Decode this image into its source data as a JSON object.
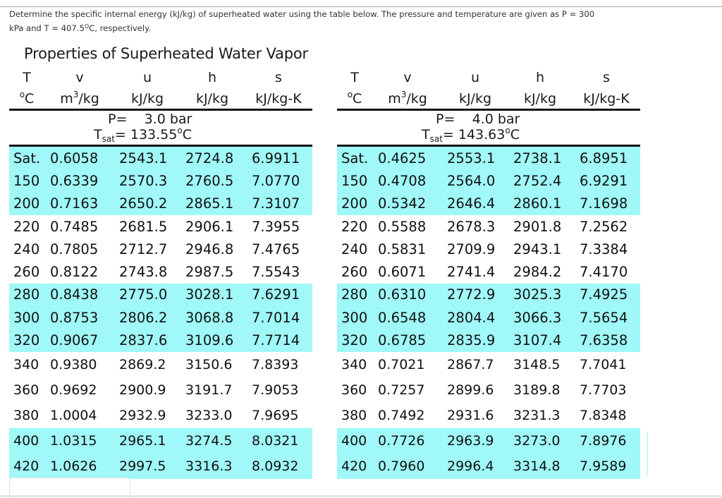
{
  "question": {
    "line1": "Determine the specific internal energy (kJ/kg) of superheated water using the table below. The pressure and temperature are given as P = 300",
    "line2_prefix": "kPa and T = 407.5",
    "line2_degree": "O",
    "line2_suffix": "C, respectively."
  },
  "document": {
    "title": "Properties of Superheated Water Vapor",
    "highlight_color": "#a0f8f8"
  },
  "columns": {
    "symbols": [
      "T",
      "v",
      "u",
      "h",
      "s"
    ],
    "units": [
      "°C",
      "m3/kg",
      "kJ/kg",
      "kJ/kg",
      "kJ/kg-K"
    ],
    "unit_T_deg": "o",
    "unit_T_c": "C",
    "unit_v_m": "m",
    "unit_v_exp": "3",
    "unit_v_rest": "/kg"
  },
  "tables": [
    {
      "pressure_label": "P=",
      "pressure_value": "3.0",
      "pressure_unit": "bar",
      "tsat_label": "T",
      "tsat_sub": "sat",
      "tsat_eq": "= 133.55",
      "tsat_deg": "o",
      "tsat_unit": "C",
      "rows": [
        {
          "T": "Sat.",
          "v": "0.6058",
          "u": "2543.1",
          "h": "2724.8",
          "s": "6.9911",
          "highlighted": true
        },
        {
          "T": "150",
          "v": "0.6339",
          "u": "2570.3",
          "h": "2760.5",
          "s": "7.0770",
          "highlighted": true
        },
        {
          "T": "200",
          "v": "0.7163",
          "u": "2650.2",
          "h": "2865.1",
          "s": "7.3107",
          "highlighted": true
        },
        {
          "T": "220",
          "v": "0.7485",
          "u": "2681.5",
          "h": "2906.1",
          "s": "7.3955",
          "highlighted": false
        },
        {
          "T": "240",
          "v": "0.7805",
          "u": "2712.7",
          "h": "2946.8",
          "s": "7.4765",
          "highlighted": false
        },
        {
          "T": "260",
          "v": "0.8122",
          "u": "2743.8",
          "h": "2987.5",
          "s": "7.5543",
          "highlighted": false
        },
        {
          "T": "280",
          "v": "0.8438",
          "u": "2775.0",
          "h": "3028.1",
          "s": "7.6291",
          "highlighted": true
        },
        {
          "T": "300",
          "v": "0.8753",
          "u": "2806.2",
          "h": "3068.8",
          "s": "7.7014",
          "highlighted": true
        },
        {
          "T": "320",
          "v": "0.9067",
          "u": "2837.6",
          "h": "3109.6",
          "s": "7.7714",
          "highlighted": true
        },
        {
          "T": "340",
          "v": "0.9380",
          "u": "2869.2",
          "h": "3150.6",
          "s": "7.8393",
          "highlighted": false
        },
        {
          "T": "360",
          "v": "0.9692",
          "u": "2900.9",
          "h": "3191.7",
          "s": "7.9053",
          "highlighted": false
        },
        {
          "T": "380",
          "v": "1.0004",
          "u": "2932.9",
          "h": "3233.0",
          "s": "7.9695",
          "highlighted": false
        },
        {
          "T": "400",
          "v": "1.0315",
          "u": "2965.1",
          "h": "3274.5",
          "s": "8.0321",
          "highlighted": true
        },
        {
          "T": "420",
          "v": "1.0626",
          "u": "2997.5",
          "h": "3316.3",
          "s": "8.0932",
          "highlighted": true
        }
      ]
    },
    {
      "pressure_label": "P=",
      "pressure_value": "4.0",
      "pressure_unit": "bar",
      "tsat_label": "T",
      "tsat_sub": "sat",
      "tsat_eq": "= 143.63",
      "tsat_deg": "o",
      "tsat_unit": "C",
      "rows": [
        {
          "T": "Sat.",
          "v": "0.4625",
          "u": "2553.1",
          "h": "2738.1",
          "s": "6.8951",
          "highlighted": true
        },
        {
          "T": "150",
          "v": "0.4708",
          "u": "2564.0",
          "h": "2752.4",
          "s": "6.9291",
          "highlighted": true
        },
        {
          "T": "200",
          "v": "0.5342",
          "u": "2646.4",
          "h": "2860.1",
          "s": "7.1698",
          "highlighted": true
        },
        {
          "T": "220",
          "v": "0.5588",
          "u": "2678.3",
          "h": "2901.8",
          "s": "7.2562",
          "highlighted": false
        },
        {
          "T": "240",
          "v": "0.5831",
          "u": "2709.9",
          "h": "2943.1",
          "s": "7.3384",
          "highlighted": false
        },
        {
          "T": "260",
          "v": "0.6071",
          "u": "2741.4",
          "h": "2984.2",
          "s": "7.4170",
          "highlighted": false
        },
        {
          "T": "280",
          "v": "0.6310",
          "u": "2772.9",
          "h": "3025.3",
          "s": "7.4925",
          "highlighted": true
        },
        {
          "T": "300",
          "v": "0.6548",
          "u": "2804.4",
          "h": "3066.3",
          "s": "7.5654",
          "highlighted": true
        },
        {
          "T": "320",
          "v": "0.6785",
          "u": "2835.9",
          "h": "3107.4",
          "s": "7.6358",
          "highlighted": true
        },
        {
          "T": "340",
          "v": "0.7021",
          "u": "2867.7",
          "h": "3148.5",
          "s": "7.7041",
          "highlighted": false
        },
        {
          "T": "360",
          "v": "0.7257",
          "u": "2899.6",
          "h": "3189.8",
          "s": "7.7703",
          "highlighted": false
        },
        {
          "T": "380",
          "v": "0.7492",
          "u": "2931.6",
          "h": "3231.3",
          "s": "7.8348",
          "highlighted": false
        },
        {
          "T": "400",
          "v": "0.7726",
          "u": "2963.9",
          "h": "3273.0",
          "s": "7.8976",
          "highlighted": true
        },
        {
          "T": "420",
          "v": "0.7960",
          "u": "2996.4",
          "h": "3314.8",
          "s": "7.9589",
          "highlighted": true
        }
      ]
    }
  ]
}
